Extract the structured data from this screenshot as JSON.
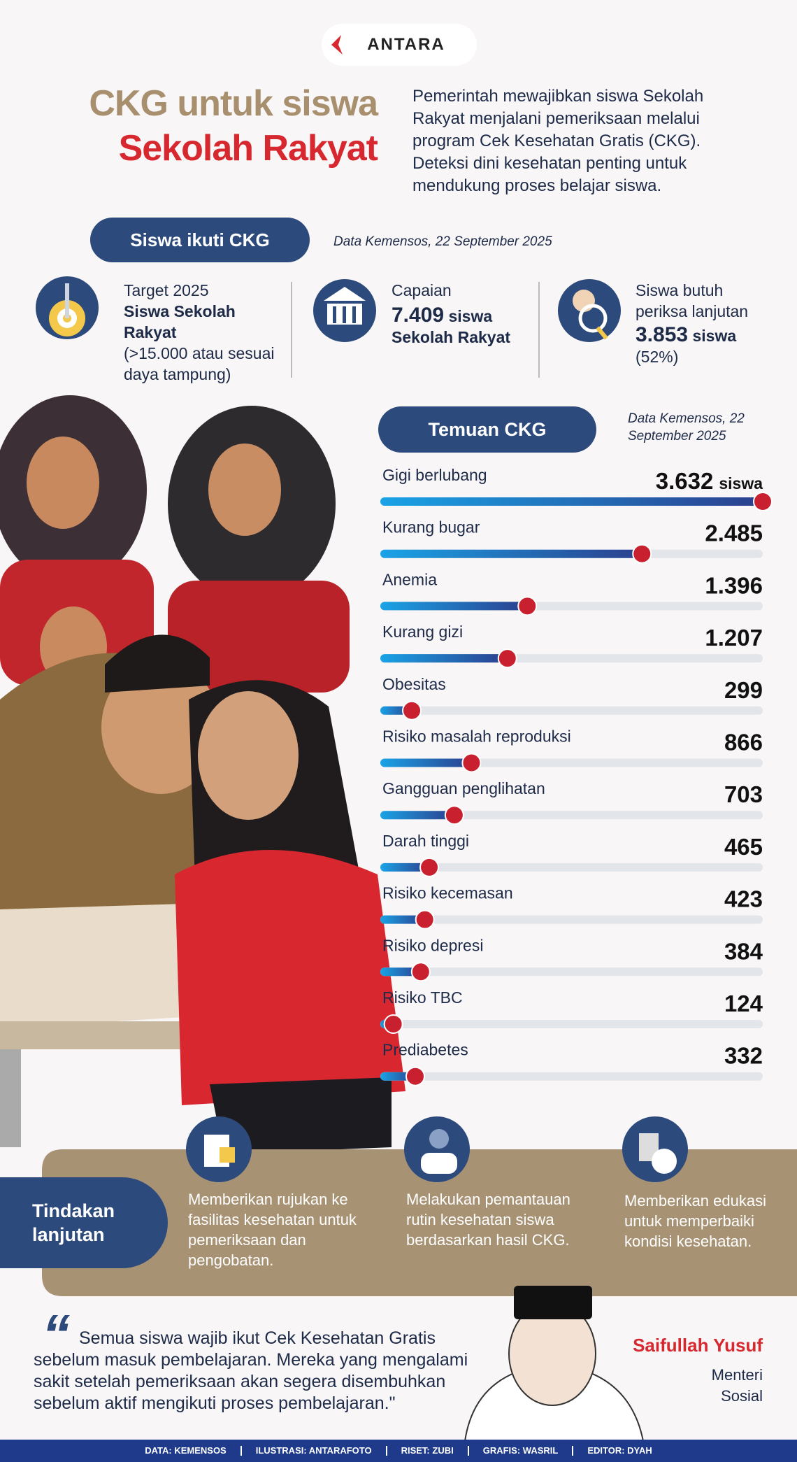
{
  "logo": "ANTARA",
  "header": {
    "title_line1": "CKG untuk siswa",
    "title_line2": "Sekolah Rakyat",
    "description": "Pemerintah mewajibkan siswa Sekolah Rakyat menjalani pemeriksaan melalui program Cek Kesehatan Gratis (CKG). Deteksi dini kesehatan penting untuk mendukung proses belajar siswa."
  },
  "participation": {
    "label": "Siswa ikuti CKG",
    "source": "Data Kemensos, 22 September 2025",
    "stats": [
      {
        "heading": "Target 2025",
        "highlight": "Siswa Sekolah Rakyat",
        "note": "(>15.000 atau sesuai daya tampung)"
      },
      {
        "heading": "Capaian",
        "value": "7.409",
        "suffix": "siswa Sekolah Rakyat"
      },
      {
        "heading": "Siswa butuh periksa lanjutan",
        "value": "3.853",
        "suffix": "siswa",
        "note": "(52%)"
      }
    ]
  },
  "chart_data": {
    "type": "bar",
    "title": "Temuan CKG",
    "source": "Data Kemensos, 22 September 2025",
    "unit": "siswa",
    "categories": [
      "Gigi berlubang",
      "Kurang bugar",
      "Anemia",
      "Kurang gizi",
      "Obesitas",
      "Risiko masalah reproduksi",
      "Gangguan penglihatan",
      "Darah tinggi",
      "Risiko kecemasan",
      "Risiko depresi",
      "Risiko TBC",
      "Prediabetes"
    ],
    "values": [
      3632,
      2485,
      1396,
      1207,
      299,
      866,
      703,
      465,
      423,
      384,
      124,
      332
    ],
    "value_labels": [
      "3.632",
      "2.485",
      "1.396",
      "1.207",
      "299",
      "866",
      "703",
      "465",
      "423",
      "384",
      "124",
      "332"
    ],
    "color": "#2c3f8e",
    "color_start": "#1aa3e6",
    "marker_color": "#c8202e",
    "track_color": "#e2e5ea"
  },
  "follow_up": {
    "label": "Tindakan lanjutan",
    "items": [
      "Memberikan rujukan ke fasilitas kesehatan untuk pemeriksaan dan pengobatan.",
      "Melakukan pemantauan rutin kesehatan siswa berdasarkan hasil CKG.",
      "Memberikan edukasi untuk memperbaiki kondisi kesehatan."
    ]
  },
  "quote": {
    "text": "Semua siswa wajib ikut Cek Kesehatan Gratis sebelum masuk pembelajaran. Mereka yang mengalami sakit setelah pemeriksaan akan segera disembuhkan sebelum aktif mengikuti proses pembelajaran.\"",
    "name": "Saifullah Yusuf",
    "role_line1": "Menteri",
    "role_line2": "Sosial"
  },
  "credits": [
    "DATA: KEMENSOS",
    "ILUSTRASI: ANTARAFOTO",
    "RISET: ZUBI",
    "GRAFIS: WASRIL",
    "EDITOR: DYAH"
  ]
}
